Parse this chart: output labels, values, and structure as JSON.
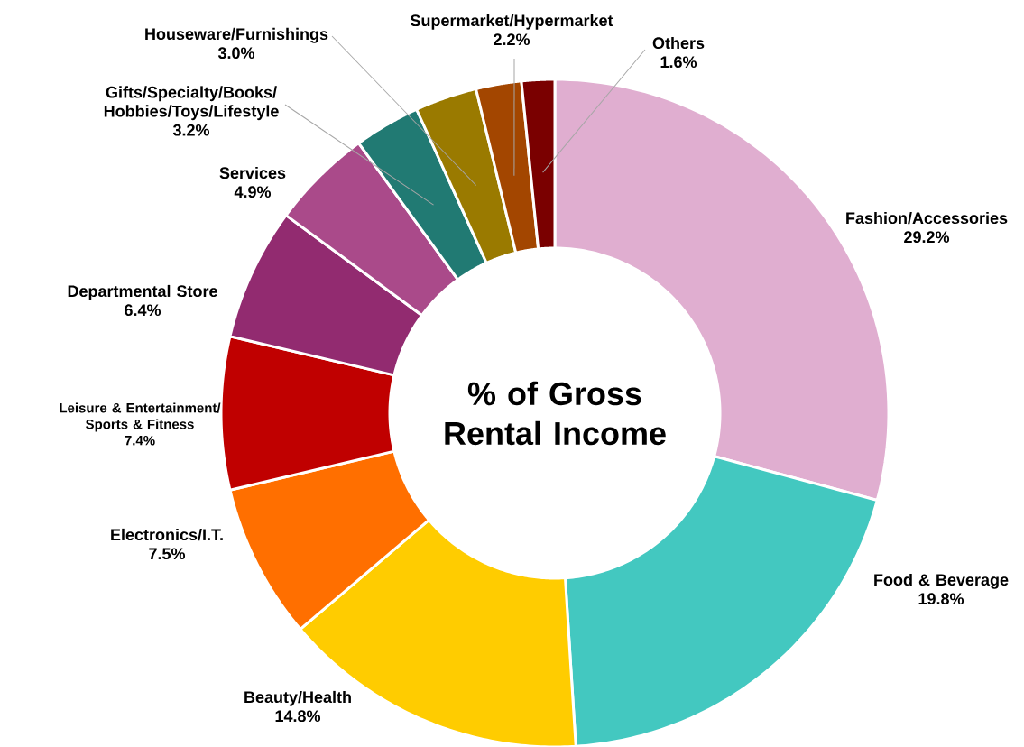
{
  "chart_data": {
    "type": "donut",
    "title": "% of Gross Rental Income",
    "categories": [
      "Fashion/Accessories",
      "Food & Beverage",
      "Beauty/Health",
      "Electronics/I.T.",
      "Leisure & Entertainment/Sports & Fitness",
      "Departmental Store",
      "Services",
      "Gifts/Specialty/Books/Hobbies/Toys/Lifestyle",
      "Houseware/Furnishings",
      "Supermarket/Hypermarket",
      "Others"
    ],
    "values": [
      29.2,
      19.8,
      14.8,
      7.5,
      7.4,
      6.4,
      4.9,
      3.2,
      3.0,
      2.2,
      1.6
    ],
    "value_labels": [
      "29.2%",
      "19.8%",
      "14.8%",
      "7.5%",
      "7.4%",
      "6.4%",
      "4.9%",
      "3.2%",
      "3.0%",
      "2.2%",
      "1.6%"
    ],
    "colors": [
      "#e0aed0",
      "#43c8c0",
      "#ffcc00",
      "#ff6f00",
      "#c00000",
      "#922b70",
      "#aa4a8a",
      "#217a73",
      "#9a7a00",
      "#a34600",
      "#7a0000"
    ]
  }
}
